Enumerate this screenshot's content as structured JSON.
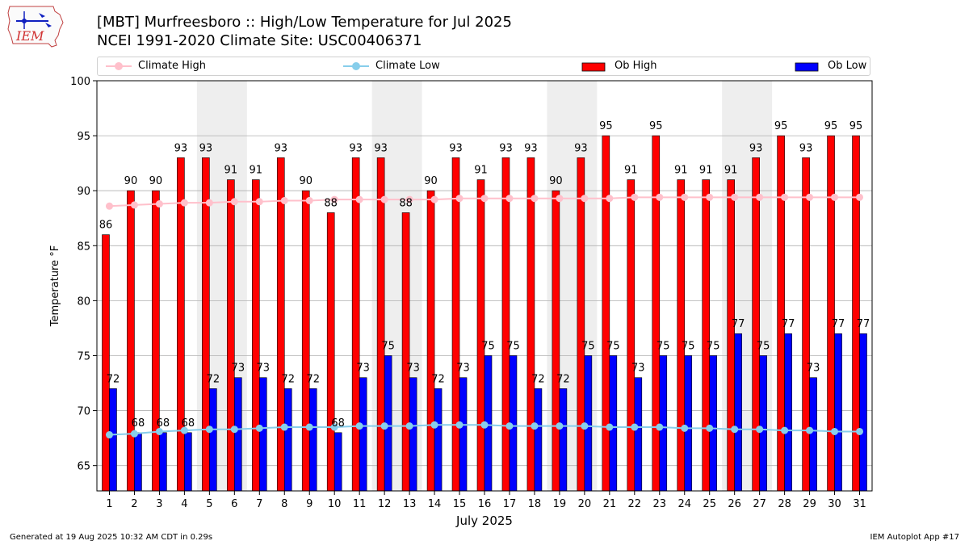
{
  "header": {
    "title_line1": "[MBT] Murfreesboro :: High/Low Temperature for Jul 2025",
    "title_line2": "NCEI 1991-2020 Climate Site: USC00406371",
    "logo_text": "IEM"
  },
  "footer": {
    "generated": "Generated at 19 Aug 2025 10:32 AM CDT in 0.29s",
    "app": "IEM Autoplot App #17"
  },
  "colors": {
    "ob_high": "#ff0000",
    "ob_low": "#0000ff",
    "climate_high": "#ffc0cb",
    "climate_low": "#87ceeb",
    "weekend_shade": "#eeeeee"
  },
  "chart_data": {
    "type": "bar",
    "xlabel": "July 2025",
    "ylabel": "Temperature °F",
    "ylim": [
      62.7,
      100
    ],
    "yticks": [
      65,
      70,
      75,
      80,
      85,
      90,
      95,
      100
    ],
    "grid": true,
    "legend_placement": "top",
    "categories": [
      "1",
      "2",
      "3",
      "4",
      "5",
      "6",
      "7",
      "8",
      "9",
      "10",
      "11",
      "12",
      "13",
      "14",
      "15",
      "16",
      "17",
      "18",
      "19",
      "20",
      "21",
      "22",
      "23",
      "24",
      "25",
      "26",
      "27",
      "28",
      "29",
      "30",
      "31"
    ],
    "shaded_days": [
      [
        5,
        6
      ],
      [
        12,
        13
      ],
      [
        19,
        20
      ],
      [
        26,
        27
      ]
    ],
    "series": [
      {
        "name": "Ob High",
        "type": "bar",
        "values": [
          86,
          90,
          90,
          93,
          93,
          91,
          91,
          93,
          90,
          88,
          93,
          93,
          88,
          90,
          93,
          91,
          93,
          93,
          90,
          93,
          95,
          91,
          95,
          91,
          91,
          91,
          93,
          95,
          93,
          95,
          95
        ]
      },
      {
        "name": "Ob Low",
        "type": "bar",
        "values": [
          72,
          68,
          68,
          68,
          72,
          73,
          73,
          72,
          72,
          68,
          73,
          75,
          73,
          72,
          73,
          75,
          75,
          72,
          72,
          75,
          75,
          73,
          75,
          75,
          75,
          77,
          75,
          77,
          73,
          77,
          77
        ]
      },
      {
        "name": "Climate High",
        "type": "line",
        "values": [
          88.6,
          88.7,
          88.8,
          88.9,
          88.9,
          89.0,
          89.0,
          89.1,
          89.1,
          89.2,
          89.2,
          89.2,
          89.2,
          89.2,
          89.3,
          89.3,
          89.3,
          89.3,
          89.3,
          89.3,
          89.3,
          89.4,
          89.4,
          89.4,
          89.4,
          89.4,
          89.4,
          89.4,
          89.4,
          89.4,
          89.4
        ]
      },
      {
        "name": "Climate Low",
        "type": "line",
        "values": [
          67.8,
          67.9,
          68.1,
          68.2,
          68.3,
          68.3,
          68.4,
          68.5,
          68.5,
          68.5,
          68.6,
          68.6,
          68.6,
          68.7,
          68.7,
          68.7,
          68.6,
          68.6,
          68.6,
          68.6,
          68.5,
          68.5,
          68.5,
          68.4,
          68.4,
          68.3,
          68.3,
          68.2,
          68.2,
          68.1,
          68.1
        ]
      }
    ]
  }
}
